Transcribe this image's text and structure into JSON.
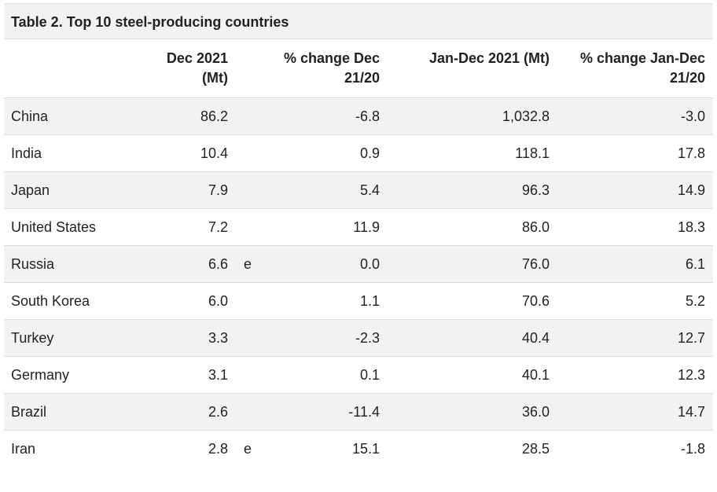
{
  "table": {
    "title": "Table 2. Top 10 steel-producing countries",
    "headers": {
      "country": "",
      "dec": [
        "Dec 2021",
        "(Mt)"
      ],
      "pct_dec": [
        "% change Dec",
        "21/20"
      ],
      "ytd": "Jan-Dec 2021 (Mt)",
      "pct_ytd": [
        "% change Jan-Dec",
        "21/20"
      ]
    },
    "rows": [
      {
        "country": "China",
        "dec": "86.2",
        "flag": "",
        "pct_dec": "-6.8",
        "ytd": "1,032.8",
        "pct_ytd": "-3.0"
      },
      {
        "country": "India",
        "dec": "10.4",
        "flag": "",
        "pct_dec": "0.9",
        "ytd": "118.1",
        "pct_ytd": "17.8"
      },
      {
        "country": "Japan",
        "dec": "7.9",
        "flag": "",
        "pct_dec": "5.4",
        "ytd": "96.3",
        "pct_ytd": "14.9"
      },
      {
        "country": "United States",
        "dec": "7.2",
        "flag": "",
        "pct_dec": "11.9",
        "ytd": "86.0",
        "pct_ytd": "18.3"
      },
      {
        "country": "Russia",
        "dec": "6.6",
        "flag": "e",
        "pct_dec": "0.0",
        "ytd": "76.0",
        "pct_ytd": "6.1"
      },
      {
        "country": "South Korea",
        "dec": "6.0",
        "flag": "",
        "pct_dec": "1.1",
        "ytd": "70.6",
        "pct_ytd": "5.2"
      },
      {
        "country": "Turkey",
        "dec": "3.3",
        "flag": "",
        "pct_dec": "-2.3",
        "ytd": "40.4",
        "pct_ytd": "12.7"
      },
      {
        "country": "Germany",
        "dec": "3.1",
        "flag": "",
        "pct_dec": "0.1",
        "ytd": "40.1",
        "pct_ytd": "12.3"
      },
      {
        "country": "Brazil",
        "dec": "2.6",
        "flag": "",
        "pct_dec": "-11.4",
        "ytd": "36.0",
        "pct_ytd": "14.7"
      },
      {
        "country": "Iran",
        "dec": "2.8",
        "flag": "e",
        "pct_dec": "15.1",
        "ytd": "28.5",
        "pct_ytd": "-1.8"
      }
    ]
  }
}
